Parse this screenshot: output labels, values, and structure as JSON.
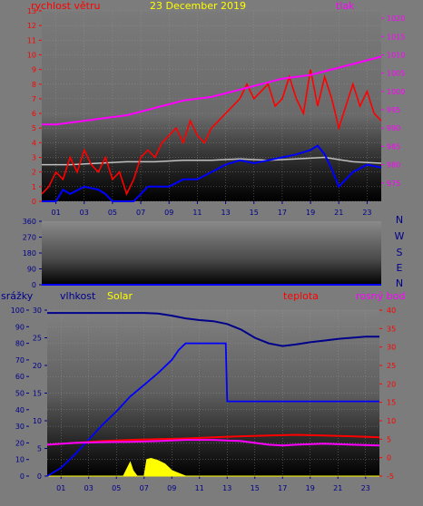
{
  "date": "23 December 2019",
  "colors": {
    "background": "#7c7c7c",
    "wind": "#ff0000",
    "wind_avg": "#0000ff",
    "pressure": "#ff00ff",
    "temperature": "#c0c0c0",
    "humidity": "#00008b",
    "precipitation": "#0000ff",
    "solar": "#ffff00",
    "temp_panel": "#ff0000",
    "dewpoint": "#ff00ff",
    "direction_letters": "#00008b"
  },
  "chart_data": [
    {
      "type": "line",
      "panel": "wind-pressure",
      "title": "23 December 2019",
      "left_axis_label": "rychlost větru",
      "right_axis_label": "tlak",
      "ylim_left": [
        0,
        13
      ],
      "left_ticks": [
        "0",
        "1",
        "2",
        "3",
        "4",
        "5",
        "6",
        "7",
        "8",
        "9",
        "10",
        "11",
        "12",
        "13"
      ],
      "ylim_right": [
        970,
        1022
      ],
      "right_ticks": [
        "975",
        "980",
        "985",
        "990",
        "995",
        "1000",
        "1005",
        "1010",
        "1015",
        "1020"
      ],
      "x_ticks": [
        "01",
        "03",
        "05",
        "07",
        "09",
        "11",
        "13",
        "15",
        "17",
        "19",
        "21",
        "23"
      ],
      "xlim": [
        0,
        24
      ],
      "series": [
        {
          "key": "gust",
          "x": [
            0,
            0.5,
            1,
            1.5,
            2,
            2.5,
            3,
            3.5,
            4,
            4.5,
            5,
            5.5,
            6,
            6.5,
            7,
            7.5,
            8,
            8.5,
            9,
            9.5,
            10,
            10.5,
            11,
            11.5,
            12,
            12.5,
            13,
            13.5,
            14,
            14.5,
            15,
            15.5,
            16,
            16.5,
            17,
            17.5,
            18,
            18.5,
            19,
            19.5,
            20,
            20.5,
            21,
            21.5,
            22,
            22.5,
            23,
            23.5,
            24
          ],
          "y": [
            0.5,
            1,
            2,
            1.5,
            3,
            2,
            3.5,
            2.5,
            2,
            3,
            1.5,
            2,
            0.5,
            1.5,
            3,
            3.5,
            3,
            4,
            4.5,
            5,
            4,
            5.5,
            4.5,
            4,
            5,
            5.5,
            6,
            6.5,
            7,
            8,
            7,
            7.5,
            8,
            6.5,
            7,
            8.5,
            7,
            6,
            9,
            6.5,
            8.5,
            7,
            5,
            6.5,
            8,
            6.5,
            7.5,
            6,
            5.5
          ]
        },
        {
          "key": "wind_avg",
          "x": [
            0,
            1,
            1.5,
            2,
            3,
            4,
            4.5,
            5,
            6,
            6.5,
            7,
            7.5,
            8,
            9,
            10,
            11,
            12,
            13,
            14,
            15,
            16,
            17,
            18,
            19,
            19.5,
            20,
            20.5,
            21,
            21.5,
            22,
            23,
            24
          ],
          "y": [
            0,
            0,
            0.8,
            0.5,
            1,
            0.8,
            0.5,
            0,
            0,
            0,
            0.5,
            1,
            1,
            1,
            1.5,
            1.5,
            2,
            2.5,
            2.8,
            2.6,
            2.8,
            3,
            3.2,
            3.5,
            3.8,
            3.2,
            2.2,
            1,
            1.5,
            2,
            2.5,
            2.3
          ]
        },
        {
          "key": "temperature",
          "x": [
            0,
            2,
            4,
            6,
            8,
            10,
            12,
            14,
            16,
            18,
            20,
            22,
            24
          ],
          "y": [
            2.5,
            2.5,
            2.6,
            2.7,
            2.7,
            2.8,
            2.8,
            2.9,
            2.8,
            2.9,
            3,
            2.7,
            2.6
          ]
        },
        {
          "key": "pressure",
          "x": [
            0,
            1,
            2,
            3,
            4,
            5,
            6,
            7,
            8,
            9,
            10,
            11,
            12,
            13,
            14,
            15,
            16,
            17,
            18,
            19,
            20,
            21,
            22,
            23,
            24
          ],
          "y": [
            991,
            991,
            991.5,
            992,
            992.5,
            993,
            993.5,
            994.5,
            995.5,
            996.5,
            997.5,
            998,
            998.5,
            999.5,
            1000.5,
            1001.5,
            1002.5,
            1003.5,
            1004,
            1004.5,
            1005.5,
            1006.5,
            1007.5,
            1008.5,
            1009.5
          ]
        }
      ]
    },
    {
      "type": "line",
      "panel": "wind-direction",
      "ylim": [
        0,
        360
      ],
      "left_ticks": [
        "0",
        "90",
        "180",
        "270",
        "360"
      ],
      "letters": [
        "N",
        "W",
        "S",
        "E",
        "N"
      ],
      "series": [
        {
          "key": "direction",
          "x": [
            0,
            24
          ],
          "y": [
            0,
            0
          ]
        }
      ]
    },
    {
      "type": "line",
      "panel": "humidity-temperature-solar",
      "labels": {
        "precipitation": "srážky",
        "humidity": "vlhkost",
        "solar": "Solar",
        "temperature": "teplota",
        "dewpoint": "rosný bod"
      },
      "ylim_rain": [
        0,
        100
      ],
      "rain_ticks": [
        "0",
        "10",
        "20",
        "30",
        "40",
        "50",
        "60",
        "70",
        "80",
        "90",
        "100"
      ],
      "ylim_humidity": [
        0,
        30
      ],
      "humidity_ticks": [
        "0",
        "5",
        "10",
        "15",
        "20",
        "25",
        "30"
      ],
      "ylim_temp": [
        -5,
        40
      ],
      "temp_ticks": [
        "-5",
        "0",
        "5",
        "10",
        "15",
        "20",
        "25",
        "30",
        "35",
        "40"
      ],
      "x_ticks": [
        "01",
        "03",
        "05",
        "07",
        "09",
        "11",
        "13",
        "15",
        "17",
        "19",
        "21",
        "23"
      ],
      "xlim": [
        0,
        24
      ],
      "series": [
        {
          "key": "humidity_top",
          "x": [
            0,
            3,
            5,
            7,
            8,
            9,
            10,
            11,
            12,
            13,
            14,
            15,
            16,
            17,
            18,
            19,
            20,
            21,
            22,
            23,
            24
          ],
          "y": [
            29.5,
            29.5,
            29.5,
            29.5,
            29.4,
            29,
            28.5,
            28.2,
            28,
            27.5,
            26.5,
            25,
            24,
            23.5,
            23.8,
            24.2,
            24.5,
            24.8,
            25,
            25.2,
            25.2
          ]
        },
        {
          "key": "precipitation",
          "x": [
            0,
            1,
            2,
            3,
            4,
            5,
            6,
            7,
            8,
            9,
            9.5,
            10,
            11,
            12,
            12.9,
            13,
            14,
            15,
            16,
            17,
            18,
            19,
            20,
            21,
            22,
            23,
            24
          ],
          "y": [
            0,
            5,
            13,
            22,
            31,
            39,
            48,
            55,
            62,
            70,
            76,
            80,
            80,
            80,
            80,
            45,
            45,
            45,
            45,
            45,
            45,
            45,
            45,
            45,
            45,
            45,
            45
          ]
        },
        {
          "key": "temperature",
          "x": [
            0,
            2,
            4,
            6,
            8,
            10,
            12,
            14,
            16,
            18,
            20,
            22,
            24
          ],
          "y": [
            3.5,
            4,
            4.5,
            4.8,
            5,
            5.2,
            5.5,
            5.8,
            6,
            6.2,
            6,
            5.8,
            5.5
          ]
        },
        {
          "key": "dewpoint",
          "x": [
            0,
            2,
            4,
            6,
            8,
            10,
            12,
            14,
            15,
            16,
            17,
            18,
            20,
            22,
            24
          ],
          "y": [
            3.5,
            4,
            4.2,
            4.3,
            4.5,
            4.8,
            4.8,
            4.5,
            4,
            3.5,
            3.3,
            3.5,
            3.8,
            3.5,
            3.3
          ]
        },
        {
          "key": "solar",
          "x": [
            0,
            5.5,
            5.8,
            6,
            6.2,
            6.5,
            7,
            7.2,
            7.5,
            8,
            8.5,
            8.8,
            9,
            9.5,
            10,
            24
          ],
          "y": [
            0,
            0,
            1.5,
            2.5,
            1,
            0,
            0,
            3,
            3.2,
            2.8,
            2.2,
            1.5,
            1,
            0.5,
            0,
            0
          ]
        }
      ]
    }
  ]
}
